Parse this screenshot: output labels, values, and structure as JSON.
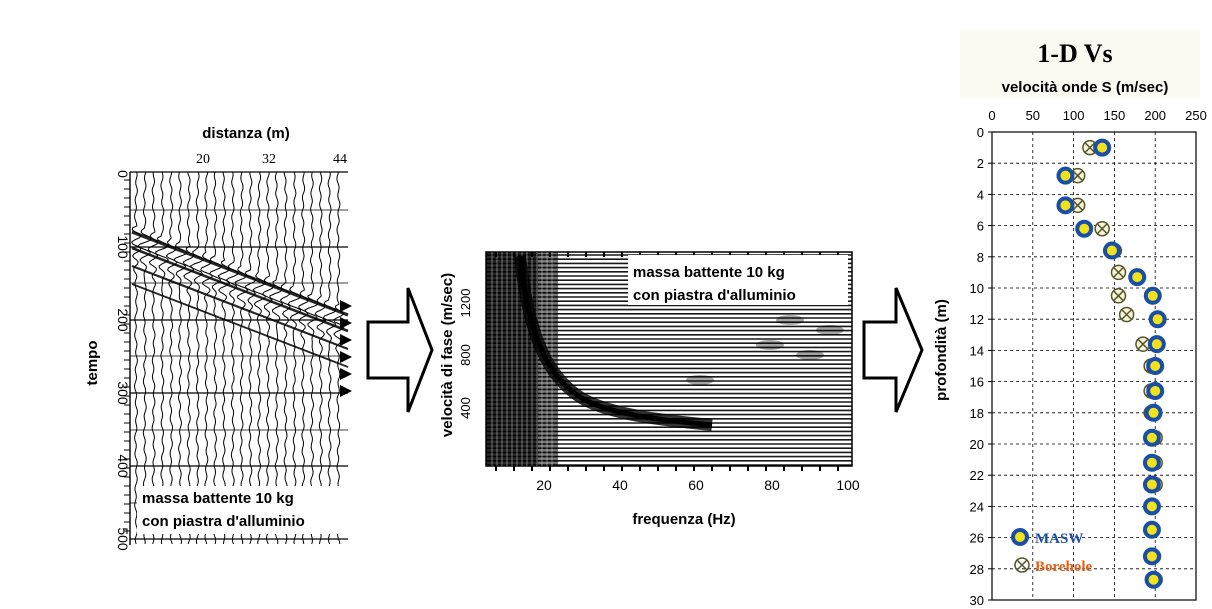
{
  "panel1": {
    "xlabel": "distanza (m)",
    "x_ticks": [
      "20",
      "32",
      "44"
    ],
    "ylabel": "tempo",
    "y_ticks": [
      "0",
      "100",
      "200",
      "300",
      "400",
      "500"
    ],
    "caption_line1": "massa battente 10 kg",
    "caption_line2": "con piastra d'alluminio"
  },
  "panel2": {
    "xlabel": "frequenza (Hz)",
    "x_ticks": [
      "20",
      "40",
      "60",
      "80",
      "100"
    ],
    "ylabel": "velocità di fase (m/sec)",
    "y_ticks": [
      "400",
      "800",
      "1200"
    ],
    "caption_line1": "massa battente 10 kg",
    "caption_line2": "con piastra d'alluminio"
  },
  "panel3": {
    "title": "1-D Vs",
    "xlabel": "velocità onde S (m/sec)",
    "ylabel": "profondità (m)",
    "legend": [
      {
        "label": "MASW",
        "color": "#1a4fa8"
      },
      {
        "label": "Borehole",
        "color": "#e0601a"
      }
    ]
  },
  "chart_data": {
    "type": "scatter",
    "title": "1-D Vs",
    "xlabel": "velocità onde S (m/sec)",
    "ylabel": "profondità (m)",
    "xlim": [
      0,
      250
    ],
    "ylim": [
      0,
      30
    ],
    "x_ticks": [
      0,
      50,
      100,
      150,
      200,
      250
    ],
    "y_ticks": [
      0,
      2,
      4,
      6,
      8,
      10,
      12,
      14,
      16,
      18,
      20,
      22,
      24,
      26,
      28,
      30
    ],
    "grid": true,
    "legend_position": "bottom-left",
    "series": [
      {
        "name": "MASW",
        "color": "#1a4fa8",
        "points": [
          [
            135,
            1
          ],
          [
            90,
            2.8
          ],
          [
            90,
            4.7
          ],
          [
            113,
            6.2
          ],
          [
            147,
            7.6
          ],
          [
            178,
            9.3
          ],
          [
            197,
            10.5
          ],
          [
            203,
            12
          ],
          [
            202,
            13.6
          ],
          [
            200,
            15
          ],
          [
            200,
            16.6
          ],
          [
            198,
            18
          ],
          [
            196,
            19.6
          ],
          [
            196,
            21.2
          ],
          [
            196,
            22.6
          ],
          [
            196,
            24
          ],
          [
            196,
            25.5
          ],
          [
            196,
            27.2
          ],
          [
            198,
            28.7
          ]
        ]
      },
      {
        "name": "Borehole",
        "color": "#e0601a",
        "points": [
          [
            120,
            1
          ],
          [
            105,
            2.8
          ],
          [
            105,
            4.7
          ],
          [
            135,
            6.2
          ],
          [
            150,
            7.6
          ],
          [
            155,
            9
          ],
          [
            155,
            10.5
          ],
          [
            165,
            11.7
          ],
          [
            185,
            13.6
          ],
          [
            195,
            15
          ],
          [
            195,
            16.6
          ],
          [
            195,
            18
          ],
          [
            200,
            19.6
          ],
          [
            200,
            21.2
          ],
          [
            200,
            22.6
          ],
          [
            196,
            24
          ],
          [
            196,
            25.5
          ],
          [
            198,
            27.2
          ],
          [
            200,
            28.7
          ]
        ]
      }
    ]
  }
}
